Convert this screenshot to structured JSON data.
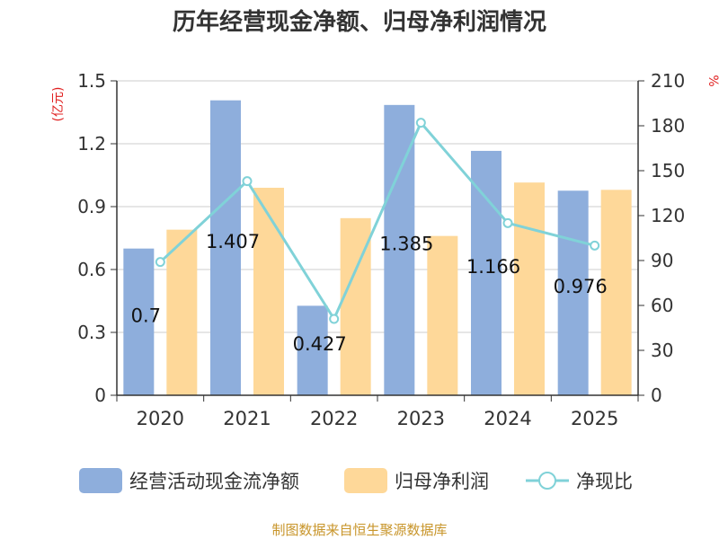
{
  "chart_data": {
    "type": "bar",
    "title": "历年经营现金净额、归母净利润情况",
    "categories": [
      "2020",
      "2021",
      "2022",
      "2023",
      "2024",
      "2025"
    ],
    "series": [
      {
        "name": "经营活动现金流净额",
        "type": "bar",
        "axis": "left",
        "color": "#8eaedc",
        "values": [
          0.7,
          1.407,
          0.427,
          1.385,
          1.166,
          0.976
        ],
        "labels": [
          "0.7",
          "1.407",
          "0.427",
          "1.385",
          "1.166",
          "0.976"
        ]
      },
      {
        "name": "归母净利润",
        "type": "bar",
        "axis": "left",
        "color": "#fed899",
        "values": [
          0.79,
          0.99,
          0.845,
          0.76,
          1.015,
          0.98
        ]
      },
      {
        "name": "净现比",
        "type": "line",
        "axis": "right",
        "color": "#80d2d8",
        "values": [
          89,
          143,
          51,
          182,
          115,
          100
        ]
      }
    ],
    "y_left": {
      "unit": "(亿元)",
      "ylim": [
        0,
        1.5
      ],
      "ticks": [
        "0",
        "0.3",
        "0.6",
        "0.9",
        "1.2",
        "1.5"
      ],
      "tick_values": [
        0,
        0.3,
        0.6,
        0.9,
        1.2,
        1.5
      ]
    },
    "y_right": {
      "unit": "%",
      "ylim": [
        0,
        210
      ],
      "ticks": [
        "0",
        "30",
        "60",
        "90",
        "120",
        "150",
        "180",
        "210"
      ],
      "tick_values": [
        0,
        30,
        60,
        90,
        120,
        150,
        180,
        210
      ]
    },
    "grid": true,
    "legend_position": "bottom",
    "source": "制图数据来自恒生聚源数据库"
  }
}
